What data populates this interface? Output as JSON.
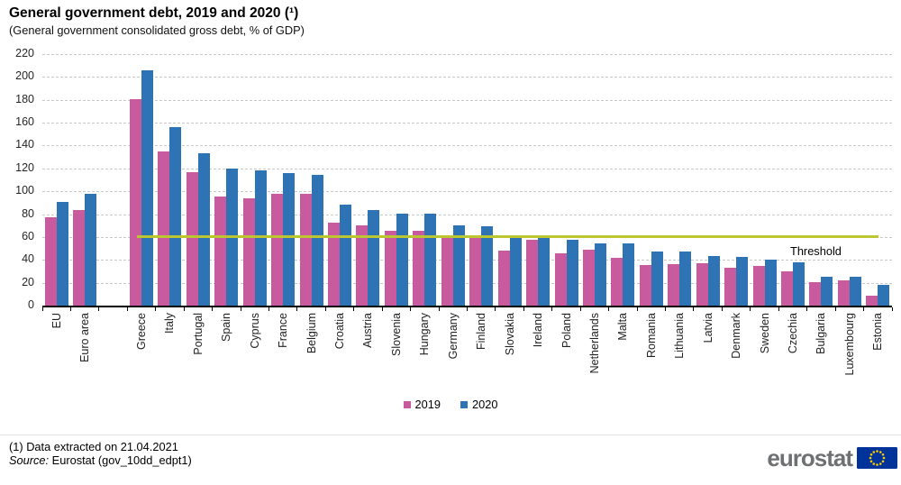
{
  "header": {
    "title": "General government debt, 2019 and 2020 (¹)",
    "subtitle": "(General government consolidated gross debt, % of GDP)"
  },
  "chart_data": {
    "type": "bar",
    "categories": [
      "EU",
      "Euro area",
      "Greece",
      "Italy",
      "Portugal",
      "Spain",
      "Cyprus",
      "France",
      "Belgium",
      "Croatia",
      "Austria",
      "Slovenia",
      "Hungary",
      "Germany",
      "Finland",
      "Slovakia",
      "Ireland",
      "Poland",
      "Netherlands",
      "Malta",
      "Romania",
      "Lithuania",
      "Latvia",
      "Denmark",
      "Sweden",
      "Czechia",
      "Bulgaria",
      "Luxembourg",
      "Estonia"
    ],
    "series": [
      {
        "name": "2019",
        "color": "#C85A9E",
        "values": [
          77.5,
          83.9,
          180.5,
          134.6,
          116.8,
          95.5,
          94.0,
          97.6,
          98.1,
          72.8,
          70.5,
          65.6,
          65.5,
          59.7,
          59.5,
          48.2,
          57.4,
          45.6,
          48.7,
          42.0,
          35.3,
          35.9,
          37.0,
          33.3,
          35.0,
          30.3,
          20.2,
          22.1,
          8.4
        ]
      },
      {
        "name": "2020",
        "color": "#2E74B5",
        "values": [
          90.7,
          98.0,
          205.6,
          155.8,
          133.6,
          120.0,
          118.2,
          115.7,
          114.1,
          88.7,
          83.9,
          80.8,
          80.4,
          69.8,
          69.2,
          60.6,
          59.5,
          57.5,
          54.5,
          54.3,
          47.3,
          47.3,
          43.5,
          42.2,
          39.9,
          38.1,
          25.0,
          24.9,
          18.2
        ]
      }
    ],
    "title": "General government debt, 2019 and 2020",
    "xlabel": "",
    "ylabel": "% of GDP",
    "ylim": [
      0,
      220
    ],
    "ytick_step": 20,
    "grid": "horizontal-dashed",
    "gridline_color": "#c8c8c8",
    "legend_position": "bottom-center",
    "gap_after_index": 1,
    "threshold": {
      "value": 60,
      "label": "Threshold",
      "color": "#BCC631"
    }
  },
  "footer": {
    "note": "(1) Data extracted on 21.04.2021",
    "source_label": "Source:",
    "source_text": " Eurostat (gov_10dd_edpt1)"
  },
  "logo": {
    "text": "eurostat",
    "flag_color": "#003399",
    "star_color": "#FFCC00"
  }
}
